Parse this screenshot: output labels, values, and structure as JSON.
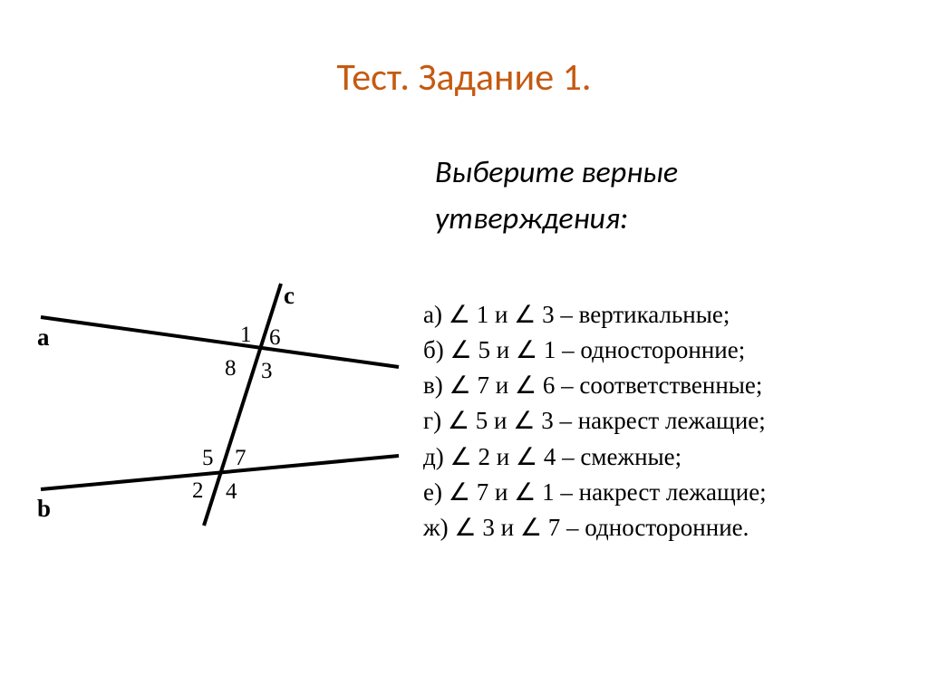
{
  "title": "Тест. Задание 1.",
  "instruction_line1": "Выберите   верные",
  "instruction_line2": "утверждения:",
  "diagram": {
    "labels": {
      "a": "a",
      "b": "b",
      "c": "c",
      "n1": "1",
      "n2": "2",
      "n3": "3",
      "n4": "4",
      "n5": "5",
      "n6": "6",
      "n7": "7",
      "n8": "8"
    },
    "stroke": "#000000",
    "stroke_width": 4,
    "font_size": 26
  },
  "options": [
    {
      "letter": "а)",
      "a1": "1",
      "a2": "3",
      "word": "вертикальные;"
    },
    {
      "letter": "б)",
      "a1": "5",
      "a2": "1",
      "word": "односторонние;"
    },
    {
      "letter": "в)",
      "a1": "7",
      "a2": "6",
      "word": "соответственные;"
    },
    {
      "letter": "г)",
      "a1": "5",
      "a2": "3",
      "word": "накрест лежащие;"
    },
    {
      "letter": "д)",
      "a1": "2",
      "a2": "4",
      "word": "смежные;"
    },
    {
      "letter": "е)",
      "a1": "7",
      "a2": "1",
      "word": "накрест лежащие;"
    },
    {
      "letter": "ж)",
      "a1": "3",
      "a2": "7",
      "word": "односторонние."
    }
  ],
  "colors": {
    "title": "#c55a11",
    "text": "#000000",
    "background": "#ffffff"
  }
}
